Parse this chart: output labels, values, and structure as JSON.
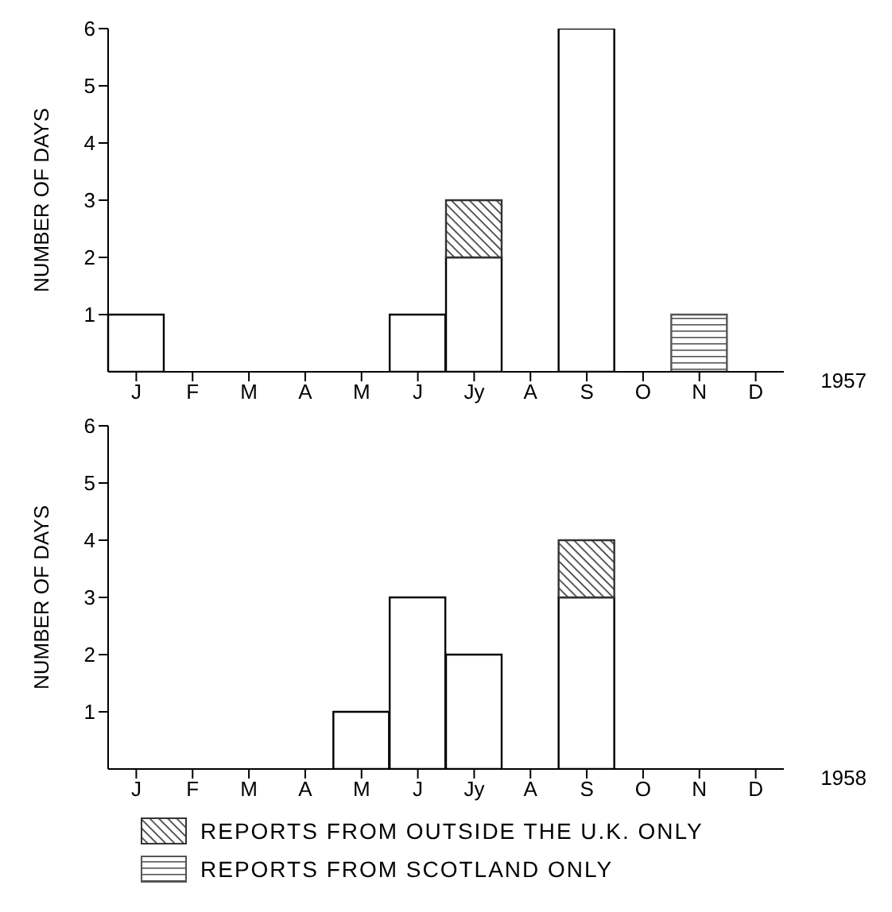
{
  "chart_data": [
    {
      "type": "bar",
      "stacked": true,
      "ylabel": "NUMBER OF DAYS",
      "categories": [
        "J",
        "F",
        "M",
        "A",
        "M",
        "J",
        "Jy",
        "A",
        "S",
        "O",
        "N",
        "D"
      ],
      "series": [
        {
          "color": "#ffffff",
          "values": [
            1,
            0,
            0,
            0,
            0,
            1,
            2,
            0,
            6,
            0,
            0,
            0
          ]
        },
        {
          "color": "#333333",
          "values": [
            0,
            0,
            0,
            0,
            0,
            0,
            1,
            0,
            0,
            0,
            0,
            0
          ]
        },
        {
          "color": "#555555",
          "values": [
            0,
            0,
            0,
            0,
            0,
            0,
            0,
            0,
            0,
            0,
            1,
            0
          ]
        }
      ],
      "ylim": [
        0,
        6
      ],
      "yticks": [
        1,
        2,
        3,
        4,
        5,
        6
      ],
      "grid": false,
      "legend": false,
      "annotations": [
        "1957"
      ]
    },
    {
      "type": "bar",
      "stacked": true,
      "ylabel": "NUMBER OF DAYS",
      "categories": [
        "J",
        "F",
        "M",
        "A",
        "M",
        "J",
        "Jy",
        "A",
        "S",
        "O",
        "N",
        "D"
      ],
      "series": [
        {
          "color": "#ffffff",
          "values": [
            0,
            0,
            0,
            0,
            1,
            3,
            2,
            0,
            3,
            0,
            0,
            0
          ]
        },
        {
          "name": "REPORTS FROM OUTSIDE THE U.K. ONLY",
          "color": "#333333",
          "values": [
            0,
            0,
            0,
            0,
            0,
            0,
            0,
            0,
            1,
            0,
            0,
            0
          ]
        },
        {
          "name": "REPORTS FROM SCOTLAND ONLY",
          "color": "#555555",
          "values": [
            0,
            0,
            0,
            0,
            0,
            0,
            0,
            0,
            0,
            0,
            0,
            0
          ]
        }
      ],
      "ylim": [
        0,
        6
      ],
      "yticks": [
        1,
        2,
        3,
        4,
        5,
        6
      ],
      "grid": false,
      "legend": "bottom",
      "annotations": [
        "1958"
      ]
    }
  ]
}
